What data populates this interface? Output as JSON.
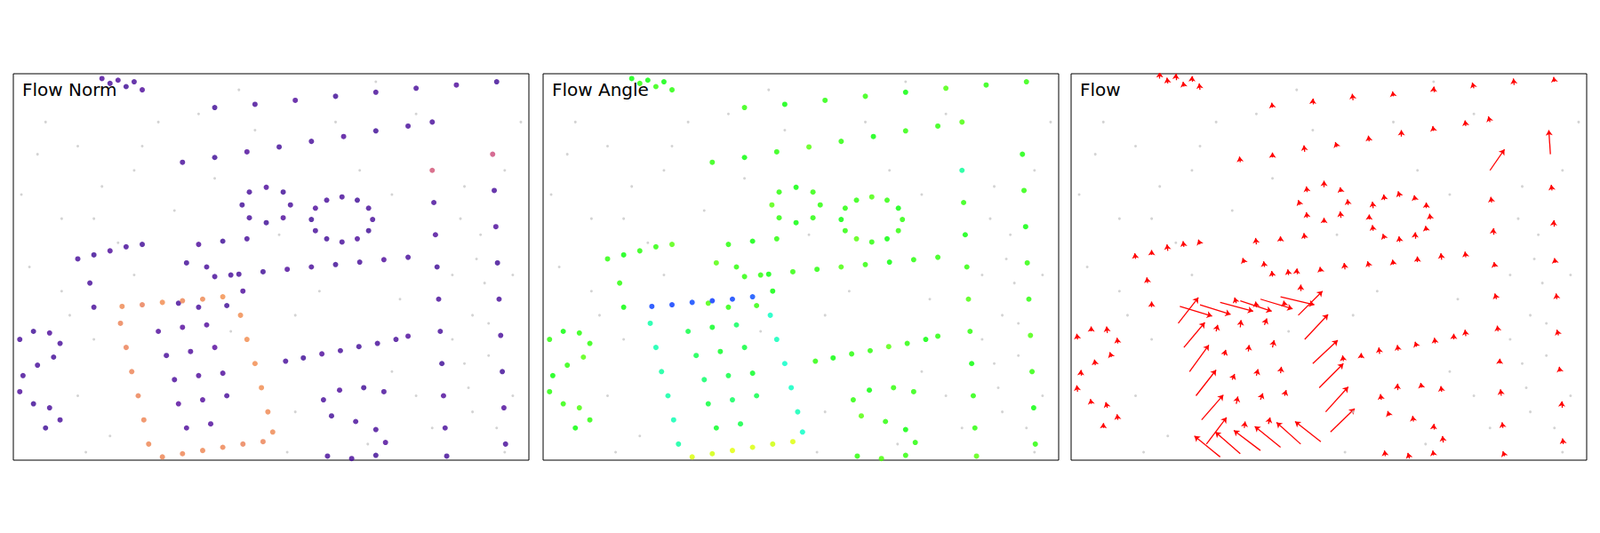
{
  "chart_data": {
    "type": "scatter",
    "titles": [
      "Flow Norm",
      "Flow Angle",
      "Flow"
    ],
    "xlim": [
      0,
      640
    ],
    "ylim": [
      0,
      480
    ],
    "tick_labels": false,
    "grid": false,
    "norm_range": [
      0,
      60
    ],
    "background": {
      "color": "#c8c8c8",
      "points": [
        [
          40,
          60
        ],
        [
          80,
          90
        ],
        [
          150,
          120
        ],
        [
          60,
          180
        ],
        [
          20,
          240
        ],
        [
          100,
          180
        ],
        [
          180,
          60
        ],
        [
          300,
          70
        ],
        [
          500,
          50
        ],
        [
          560,
          140
        ],
        [
          580,
          200
        ],
        [
          620,
          250
        ],
        [
          570,
          300
        ],
        [
          590,
          350
        ],
        [
          570,
          420
        ],
        [
          620,
          400
        ],
        [
          480,
          280
        ],
        [
          350,
          300
        ],
        [
          120,
          450
        ],
        [
          90,
          470
        ],
        [
          60,
          270
        ],
        [
          150,
          250
        ],
        [
          350,
          420
        ],
        [
          500,
          400
        ],
        [
          470,
          150
        ],
        [
          250,
          130
        ],
        [
          430,
          120
        ],
        [
          200,
          170
        ],
        [
          10,
          150
        ],
        [
          630,
          60
        ],
        [
          545,
          250
        ],
        [
          585,
          260
        ],
        [
          560,
          360
        ],
        [
          600,
          440
        ],
        [
          110,
          140
        ],
        [
          30,
          100
        ],
        [
          555,
          180
        ],
        [
          575,
          230
        ],
        [
          590,
          310
        ],
        [
          565,
          390
        ],
        [
          610,
          470
        ],
        [
          330,
          200
        ],
        [
          380,
          270
        ],
        [
          270,
          320
        ],
        [
          440,
          460
        ],
        [
          520,
          440
        ],
        [
          70,
          300
        ],
        [
          130,
          210
        ],
        [
          230,
          50
        ],
        [
          400,
          60
        ],
        [
          80,
          400
        ],
        [
          100,
          330
        ],
        [
          340,
          470
        ],
        [
          470,
          370
        ],
        [
          160,
          90
        ],
        [
          280,
          20
        ],
        [
          450,
          10
        ],
        [
          50,
          20
        ],
        [
          610,
          120
        ],
        [
          545,
          330
        ]
      ]
    },
    "flow": {
      "color": "#ff0000",
      "points": [
        [
          110,
          6,
          0,
          -8
        ],
        [
          120,
          12,
          -1,
          -7
        ],
        [
          130,
          8,
          0,
          -8
        ],
        [
          140,
          16,
          -1,
          -6
        ],
        [
          150,
          10,
          0,
          -7
        ],
        [
          160,
          20,
          -1,
          -8
        ],
        [
          210,
          110,
          -1,
          -7
        ],
        [
          250,
          104,
          0,
          -6
        ],
        [
          290,
          97,
          -1,
          -8
        ],
        [
          330,
          91,
          -2,
          -6
        ],
        [
          370,
          84,
          -1,
          -7
        ],
        [
          410,
          78,
          0,
          -8
        ],
        [
          450,
          71,
          -1,
          -6
        ],
        [
          490,
          65,
          -1,
          -7
        ],
        [
          520,
          60,
          -2,
          -7
        ],
        [
          250,
          42,
          -1,
          -6
        ],
        [
          300,
          38,
          0,
          -7
        ],
        [
          350,
          33,
          -1,
          -8
        ],
        [
          400,
          28,
          -1,
          -6
        ],
        [
          450,
          23,
          0,
          -7
        ],
        [
          500,
          18,
          -2,
          -7
        ],
        [
          550,
          14,
          -1,
          -8
        ],
        [
          600,
          10,
          -1,
          -6
        ],
        [
          446,
          181,
          -1,
          -7
        ],
        [
          441,
          195,
          -1,
          -6
        ],
        [
          427,
          205,
          0,
          -8
        ],
        [
          408,
          209,
          -1,
          -7
        ],
        [
          389,
          205,
          -2,
          -6
        ],
        [
          375,
          195,
          -1,
          -7
        ],
        [
          370,
          181,
          0,
          -6
        ],
        [
          375,
          167,
          -1,
          -8
        ],
        [
          389,
          157,
          -1,
          -7
        ],
        [
          408,
          153,
          -2,
          -7
        ],
        [
          427,
          157,
          -1,
          -6
        ],
        [
          441,
          167,
          0,
          -7
        ],
        [
          344,
          163,
          -1,
          -7
        ],
        [
          335,
          179,
          -1,
          -8
        ],
        [
          314,
          185,
          0,
          -6
        ],
        [
          293,
          179,
          -1,
          -7
        ],
        [
          284,
          163,
          -2,
          -6
        ],
        [
          293,
          147,
          -1,
          -7
        ],
        [
          314,
          141,
          0,
          -8
        ],
        [
          335,
          147,
          -1,
          -6
        ],
        [
          250,
          252,
          -1,
          -7
        ],
        [
          280,
          249,
          0,
          -7
        ],
        [
          310,
          246,
          -1,
          -6
        ],
        [
          340,
          243,
          -1,
          -8
        ],
        [
          370,
          240,
          -2,
          -7
        ],
        [
          400,
          237,
          -1,
          -6
        ],
        [
          430,
          234,
          0,
          -7
        ],
        [
          460,
          231,
          -1,
          -8
        ],
        [
          490,
          228,
          -1,
          -7
        ],
        [
          290,
          205,
          -1,
          -7
        ],
        [
          260,
          208,
          0,
          -6
        ],
        [
          230,
          212,
          -1,
          -8
        ],
        [
          215,
          235,
          -2,
          -6
        ],
        [
          240,
          240,
          -1,
          -7
        ],
        [
          270,
          250,
          -1,
          -7
        ],
        [
          285,
          270,
          0,
          -8
        ],
        [
          265,
          288,
          -1,
          -6
        ],
        [
          230,
          290,
          -1,
          -7
        ],
        [
          205,
          285,
          -2,
          -7
        ],
        [
          80,
          230,
          -1,
          -7
        ],
        [
          100,
          225,
          0,
          -6
        ],
        [
          120,
          220,
          -1,
          -8
        ],
        [
          140,
          215,
          -1,
          -7
        ],
        [
          160,
          212,
          -2,
          -6
        ],
        [
          95,
          260,
          -1,
          -7
        ],
        [
          100,
          290,
          0,
          -7
        ],
        [
          460,
          395,
          -1,
          -7
        ],
        [
          435,
          390,
          -1,
          -6
        ],
        [
          405,
          393,
          0,
          -8
        ],
        [
          385,
          405,
          -1,
          -7
        ],
        [
          395,
          425,
          -2,
          -6
        ],
        [
          425,
          432,
          -1,
          -7
        ],
        [
          450,
          442,
          0,
          -7
        ],
        [
          462,
          458,
          -1,
          -8
        ],
        [
          450,
          474,
          -1,
          -6
        ],
        [
          420,
          478,
          -2,
          -7
        ],
        [
          390,
          475,
          -1,
          -7
        ],
        [
          338,
          357,
          -1,
          -7
        ],
        [
          360,
          353,
          0,
          -6
        ],
        [
          383,
          348,
          -1,
          -8
        ],
        [
          406,
          344,
          -1,
          -7
        ],
        [
          429,
          339,
          -2,
          -6
        ],
        [
          452,
          335,
          -1,
          -7
        ],
        [
          475,
          330,
          0,
          -7
        ],
        [
          490,
          326,
          -1,
          -8
        ],
        [
          520,
          120,
          18,
          -26
        ],
        [
          522,
          160,
          -1,
          -7
        ],
        [
          524,
          200,
          0,
          -8
        ],
        [
          526,
          240,
          -1,
          -6
        ],
        [
          528,
          280,
          -2,
          -7
        ],
        [
          530,
          320,
          -1,
          -7
        ],
        [
          532,
          360,
          0,
          -6
        ],
        [
          534,
          400,
          -1,
          -8
        ],
        [
          536,
          440,
          -1,
          -7
        ],
        [
          538,
          475,
          -2,
          -6
        ],
        [
          595,
          100,
          -2,
          -30
        ],
        [
          597,
          145,
          -1,
          -7
        ],
        [
          599,
          190,
          0,
          -8
        ],
        [
          601,
          235,
          -1,
          -6
        ],
        [
          603,
          280,
          -1,
          -7
        ],
        [
          605,
          325,
          -2,
          -7
        ],
        [
          607,
          370,
          -1,
          -6
        ],
        [
          609,
          415,
          0,
          -8
        ],
        [
          611,
          460,
          -1,
          -7
        ],
        [
          8,
          330,
          -1,
          -7
        ],
        [
          25,
          320,
          0,
          -6
        ],
        [
          45,
          322,
          -1,
          -8
        ],
        [
          58,
          335,
          -1,
          -7
        ],
        [
          50,
          352,
          -2,
          -6
        ],
        [
          30,
          362,
          -1,
          -7
        ],
        [
          12,
          375,
          0,
          -7
        ],
        [
          8,
          395,
          -1,
          -8
        ],
        [
          25,
          410,
          -1,
          -6
        ],
        [
          45,
          415,
          -2,
          -7
        ],
        [
          58,
          430,
          -1,
          -7
        ],
        [
          40,
          440,
          0,
          -6
        ],
        [
          135,
          289,
          40,
          12
        ],
        [
          160,
          287,
          38,
          12
        ],
        [
          185,
          284,
          41,
          11
        ],
        [
          210,
          282,
          39,
          13
        ],
        [
          235,
          280,
          40,
          12
        ],
        [
          260,
          277,
          42,
          10
        ],
        [
          282,
          300,
          30,
          -30
        ],
        [
          290,
          330,
          29,
          -31
        ],
        [
          300,
          360,
          31,
          -29
        ],
        [
          308,
          390,
          30,
          -30
        ],
        [
          316,
          420,
          28,
          -31
        ],
        [
          322,
          445,
          30,
          -29
        ],
        [
          185,
          476,
          -32,
          -26
        ],
        [
          210,
          472,
          -31,
          -27
        ],
        [
          235,
          468,
          -33,
          -25
        ],
        [
          260,
          464,
          -32,
          -26
        ],
        [
          285,
          460,
          -30,
          -27
        ],
        [
          310,
          457,
          -32,
          -25
        ],
        [
          133,
          310,
          25,
          -32
        ],
        [
          140,
          340,
          26,
          -31
        ],
        [
          147,
          370,
          24,
          -33
        ],
        [
          155,
          400,
          25,
          -32
        ],
        [
          162,
          430,
          27,
          -31
        ],
        [
          168,
          460,
          25,
          -33
        ],
        [
          180,
          320,
          2,
          -8
        ],
        [
          210,
          315,
          1,
          -9
        ],
        [
          240,
          312,
          3,
          -8
        ],
        [
          190,
          350,
          2,
          -7
        ],
        [
          220,
          345,
          1,
          -8
        ],
        [
          250,
          340,
          2,
          -9
        ],
        [
          200,
          380,
          3,
          -7
        ],
        [
          230,
          375,
          2,
          -8
        ],
        [
          260,
          372,
          1,
          -8
        ],
        [
          205,
          410,
          2,
          -9
        ],
        [
          235,
          405,
          3,
          -8
        ],
        [
          265,
          400,
          2,
          -7
        ],
        [
          215,
          440,
          1,
          -8
        ],
        [
          245,
          435,
          2,
          -8
        ]
      ]
    }
  }
}
